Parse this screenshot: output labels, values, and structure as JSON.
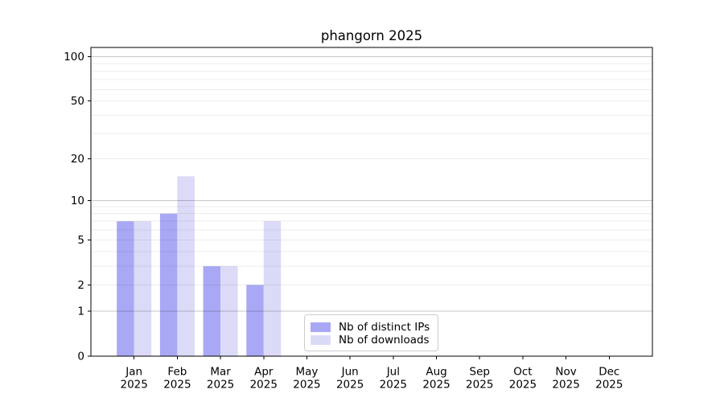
{
  "title": "phangorn 2025",
  "chart_data": {
    "type": "bar",
    "title": "phangorn 2025",
    "categories": [
      "Jan",
      "Feb",
      "Mar",
      "Apr",
      "May",
      "Jun",
      "Jul",
      "Aug",
      "Sep",
      "Oct",
      "Nov",
      "Dec"
    ],
    "year_label": "2025",
    "series": [
      {
        "name": "Nb of distinct IPs",
        "color": "#a8a8f5",
        "values": [
          7,
          8,
          3,
          2,
          0,
          0,
          0,
          0,
          0,
          0,
          0,
          0
        ]
      },
      {
        "name": "Nb of downloads",
        "color": "#dbdbf8",
        "values": [
          7,
          15,
          3,
          7,
          0,
          0,
          0,
          0,
          0,
          0,
          0,
          0
        ]
      }
    ],
    "xlabel": "",
    "ylabel": "",
    "y_axis": {
      "scale": "log10(1+x)",
      "ticks": [
        0,
        1,
        2,
        5,
        10,
        20,
        50,
        100
      ],
      "major_gridlines": [
        1,
        10,
        100
      ],
      "minor_gridlines": [
        2,
        3,
        4,
        5,
        6,
        7,
        8,
        9,
        20,
        30,
        40,
        50,
        60,
        70,
        80,
        90
      ],
      "top_value": 116
    },
    "grid": true,
    "grid_over_bars": true,
    "legend_position": "lower center",
    "colors": {
      "spine": "#000000",
      "tick_label": "#000000"
    }
  }
}
